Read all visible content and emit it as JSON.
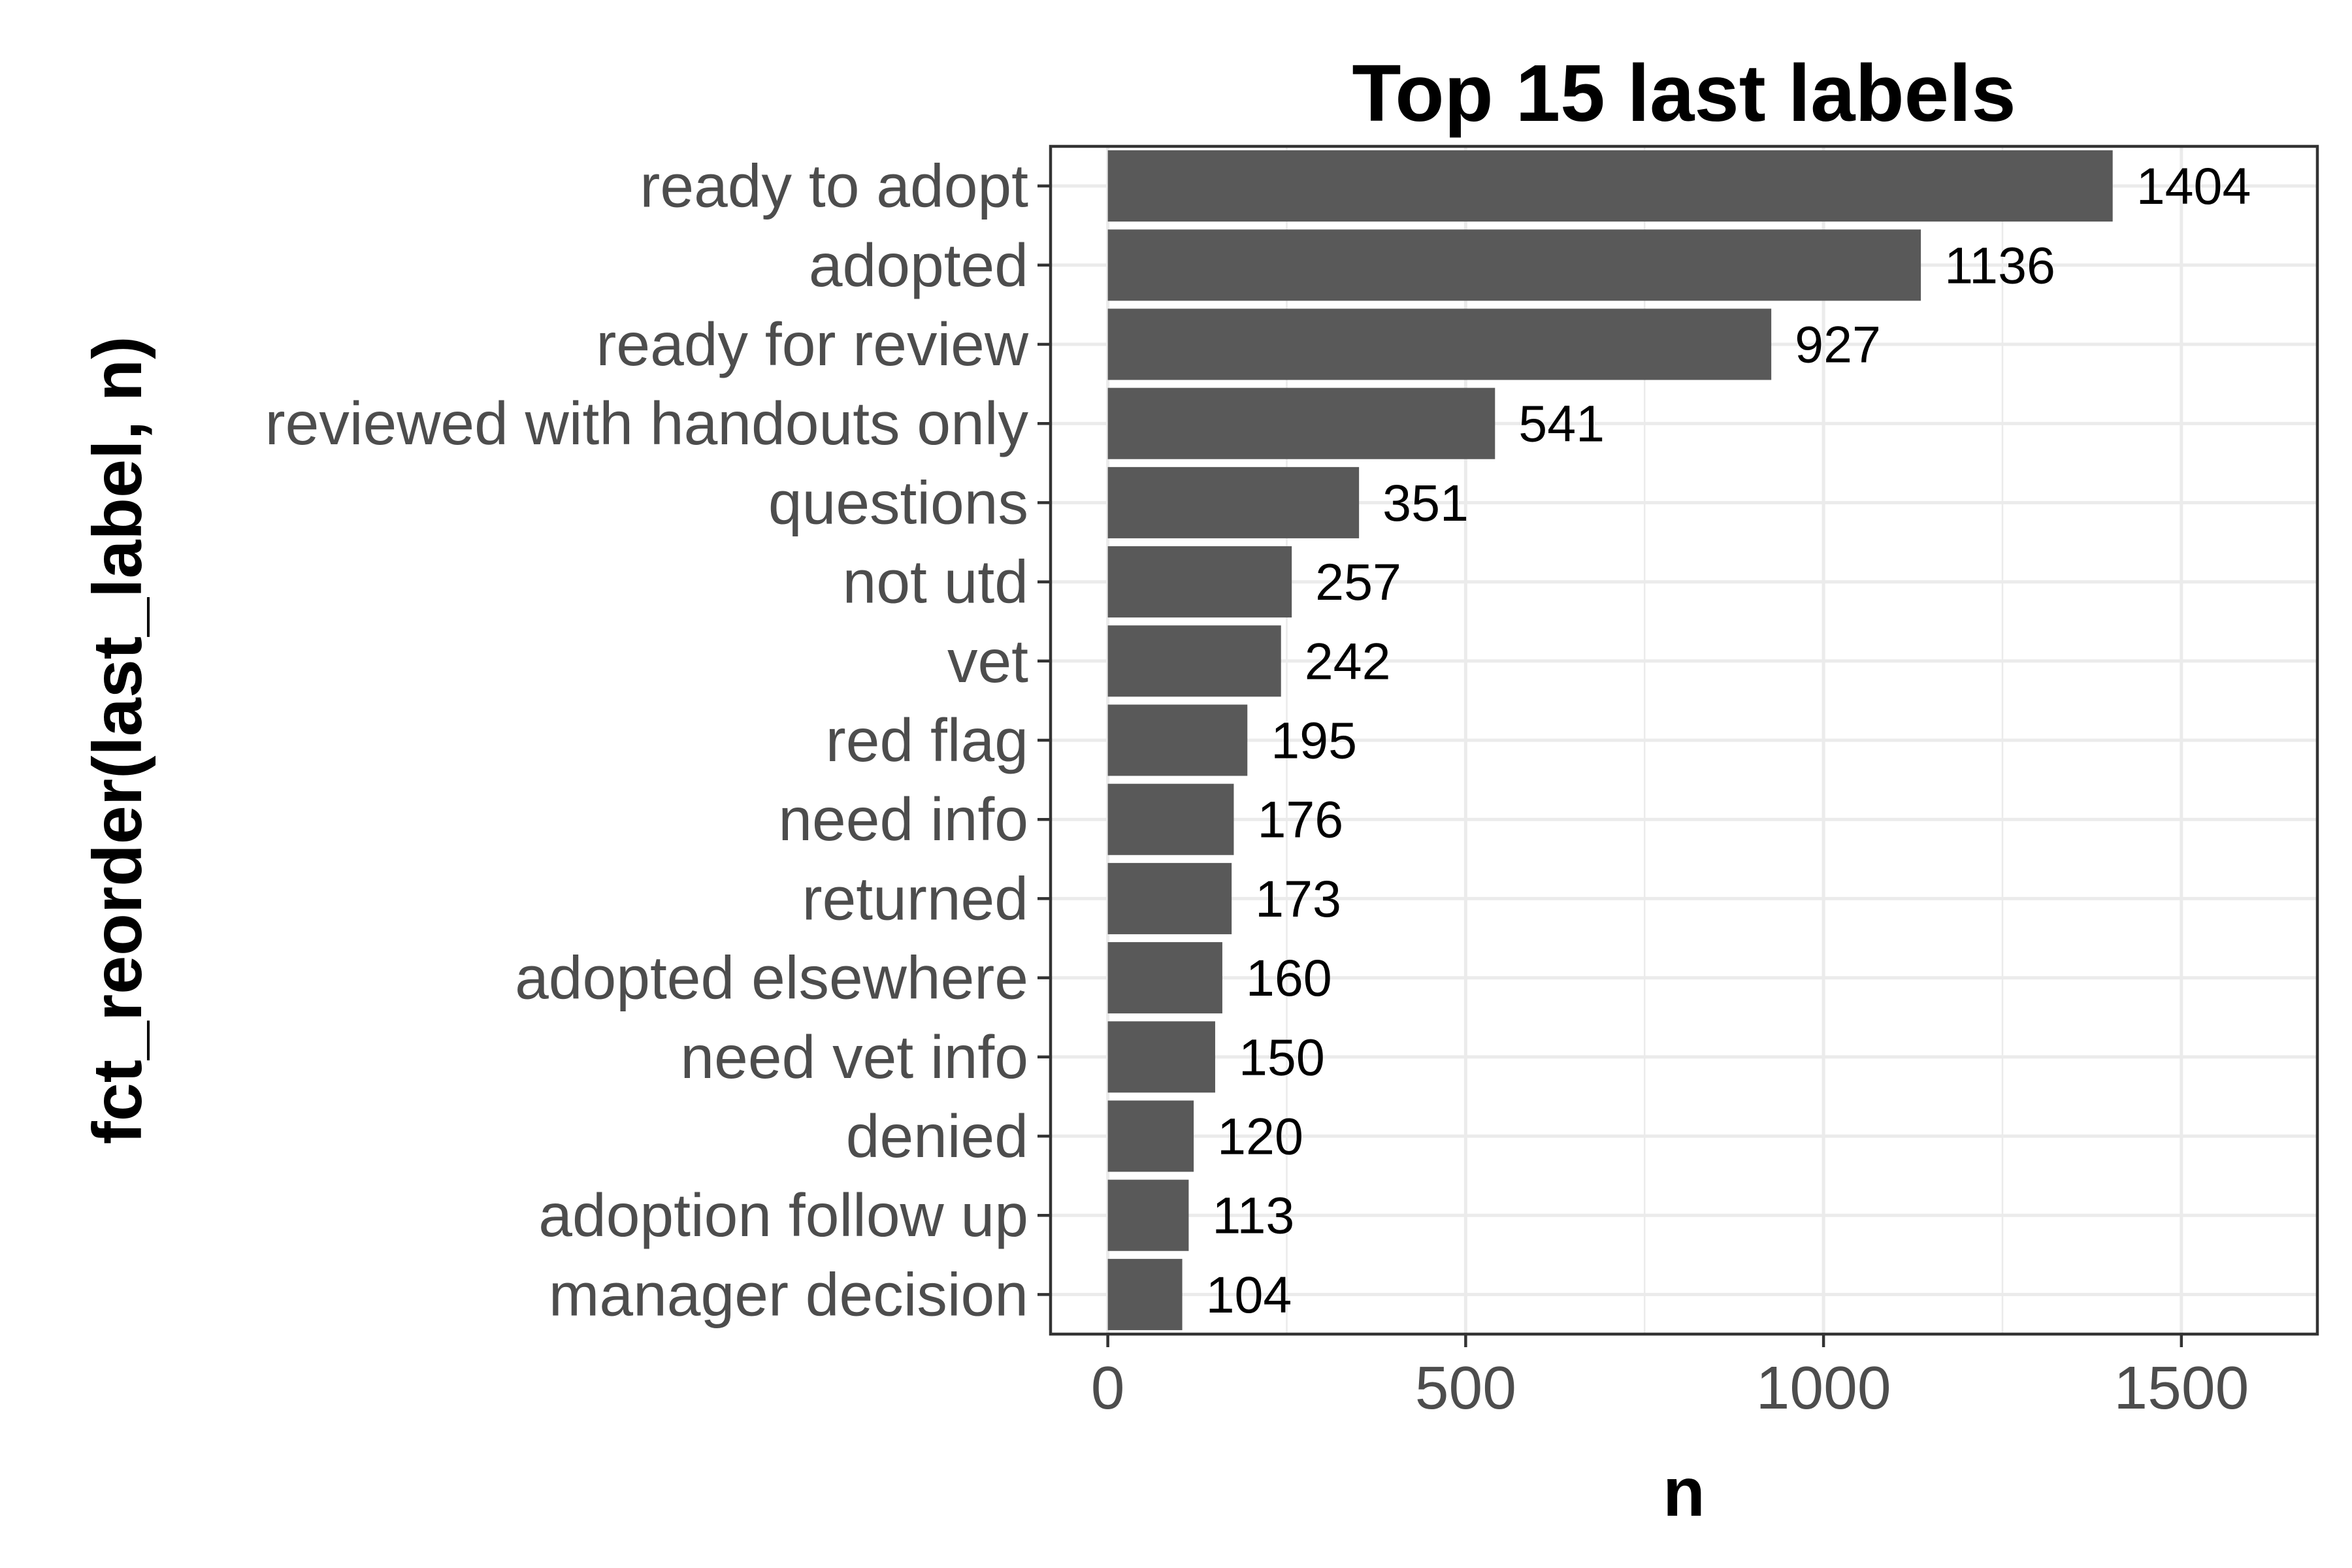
{
  "chart_data": {
    "type": "bar",
    "orientation": "horizontal",
    "title": "Top 15 last labels",
    "xlabel": "n",
    "ylabel": "fct_reorder(last_label, n)",
    "xlim": [
      -80,
      1690
    ],
    "x_ticks": [
      0,
      500,
      1000,
      1500
    ],
    "x_tick_labels": [
      "0",
      "500",
      "1000",
      "1500"
    ],
    "grid": true,
    "legend": "none",
    "bar_color": "#595959",
    "categories": [
      "ready to adopt",
      "adopted",
      "ready for review",
      "reviewed with handouts only",
      "questions",
      "not utd",
      "vet",
      "red flag",
      "need info",
      "returned",
      "adopted elsewhere",
      "need vet info",
      "denied",
      "adoption follow up",
      "manager decision"
    ],
    "values": [
      1404,
      1136,
      927,
      541,
      351,
      257,
      242,
      195,
      176,
      173,
      160,
      150,
      120,
      113,
      104
    ],
    "value_labels": [
      "1404",
      "1136",
      "927",
      "541",
      "351",
      "257",
      "242",
      "195",
      "176",
      "173",
      "160",
      "150",
      "120",
      "113",
      "104"
    ]
  }
}
